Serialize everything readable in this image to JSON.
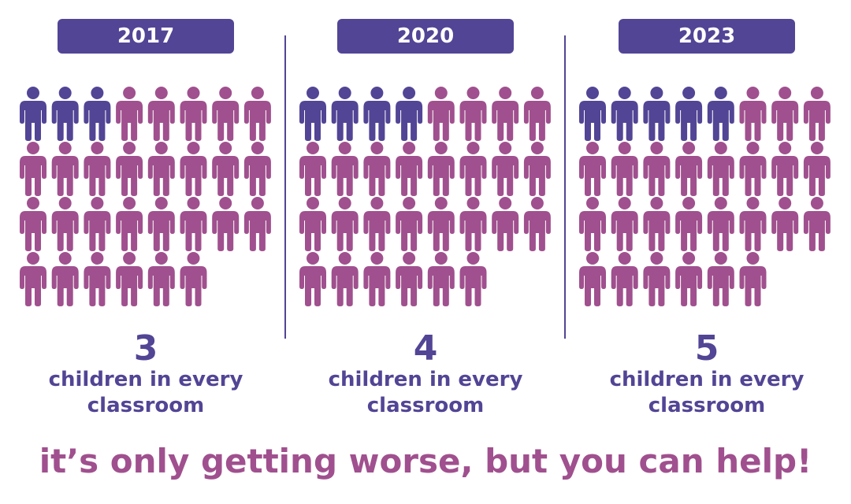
{
  "panels": [
    {
      "year": "2017",
      "value": 3,
      "total": 30,
      "caption": "children in every classroom"
    },
    {
      "year": "2020",
      "value": 4,
      "total": 30,
      "caption": "children in every classroom"
    },
    {
      "year": "2023",
      "value": 5,
      "total": 30,
      "caption": "children in every classroom"
    }
  ],
  "tagline": "it’s only getting worse, but you can help!",
  "colors": {
    "highlight": "#524595",
    "base": "#a0508e"
  }
}
